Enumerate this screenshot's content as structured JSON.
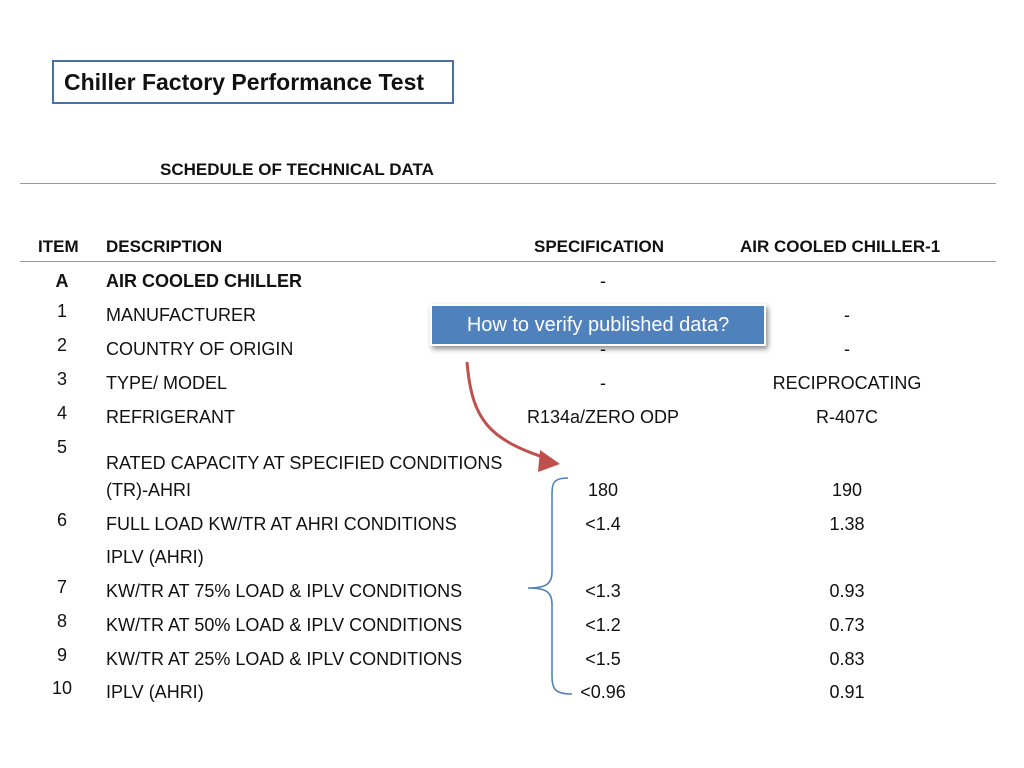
{
  "title": "Chiller Factory Performance Test",
  "schedule_heading": "SCHEDULE OF TECHNICAL DATA",
  "columns": {
    "item": "ITEM",
    "description": "DESCRIPTION",
    "specification": "SPECIFICATION",
    "air_cooled": "AIR COOLED CHILLER-1"
  },
  "rows": [
    {
      "item": "A",
      "description": "AIR COOLED CHILLER",
      "specification": "-",
      "air_cooled": ""
    },
    {
      "item": "1",
      "description": "MANUFACTURER",
      "specification": "",
      "air_cooled": "-"
    },
    {
      "item": "2",
      "description": "COUNTRY OF ORIGIN",
      "specification": "-",
      "air_cooled": "-"
    },
    {
      "item": "3",
      "description": "TYPE/ MODEL",
      "specification": "-",
      "air_cooled": "RECIPROCATING"
    },
    {
      "item": "4",
      "description": "REFRIGERANT",
      "specification": "R134a/ZERO ODP",
      "air_cooled": "R-407C"
    },
    {
      "item": "5",
      "description": "RATED CAPACITY AT SPECIFIED CONDITIONS",
      "description_line2": "(TR)-AHRI",
      "specification": "180",
      "air_cooled": "190"
    },
    {
      "item": "6",
      "description": "FULL LOAD KW/TR AT AHRI CONDITIONS",
      "specification": "<1.4",
      "air_cooled": "1.38"
    },
    {
      "item": "",
      "description": "IPLV (AHRI)",
      "specification": "",
      "air_cooled": ""
    },
    {
      "item": "7",
      "description": "KW/TR AT 75% LOAD & IPLV CONDITIONS",
      "specification": "<1.3",
      "air_cooled": "0.93"
    },
    {
      "item": "8",
      "description": "KW/TR AT 50% LOAD & IPLV CONDITIONS",
      "specification": "<1.2",
      "air_cooled": "0.73"
    },
    {
      "item": "9",
      "description": "KW/TR AT 25% LOAD & IPLV CONDITIONS",
      "specification": "<1.5",
      "air_cooled": "0.83"
    },
    {
      "item": "10",
      "description": "IPLV (AHRI)",
      "specification": "<0.96",
      "air_cooled": "0.91"
    }
  ],
  "callout": "How to verify published data?",
  "colors": {
    "title_border": "#4a6fa5",
    "callout_bg": "#4f81bd",
    "arrow": "#c0504d",
    "brace": "#4f81bd"
  }
}
